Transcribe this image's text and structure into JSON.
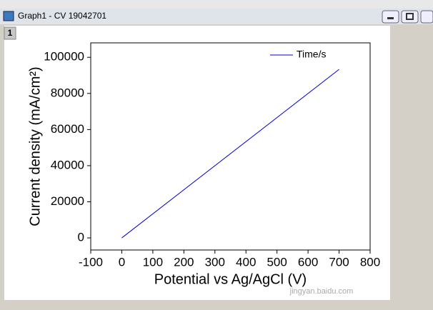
{
  "window": {
    "title": "Graph1 - CV 19042701",
    "layer": "1",
    "watermark": "jingyan.baidu.com"
  },
  "chart_data": {
    "type": "line",
    "x_label": "Potential vs Ag/AgCl (V)",
    "y_label": "Current density (mA/cm²)",
    "x": [
      0,
      700
    ],
    "series": [
      {
        "name": "Time/s",
        "color": "#0000cc",
        "values": [
          0,
          93300
        ]
      }
    ],
    "xlim": [
      -100,
      800
    ],
    "xticks": [
      -100,
      0,
      100,
      200,
      300,
      400,
      500,
      600,
      700,
      800
    ],
    "ylim": [
      -6700,
      108000
    ],
    "yticks": [
      0,
      20000,
      40000,
      60000,
      80000,
      100000
    ],
    "legend": "top-right",
    "grid": false
  }
}
